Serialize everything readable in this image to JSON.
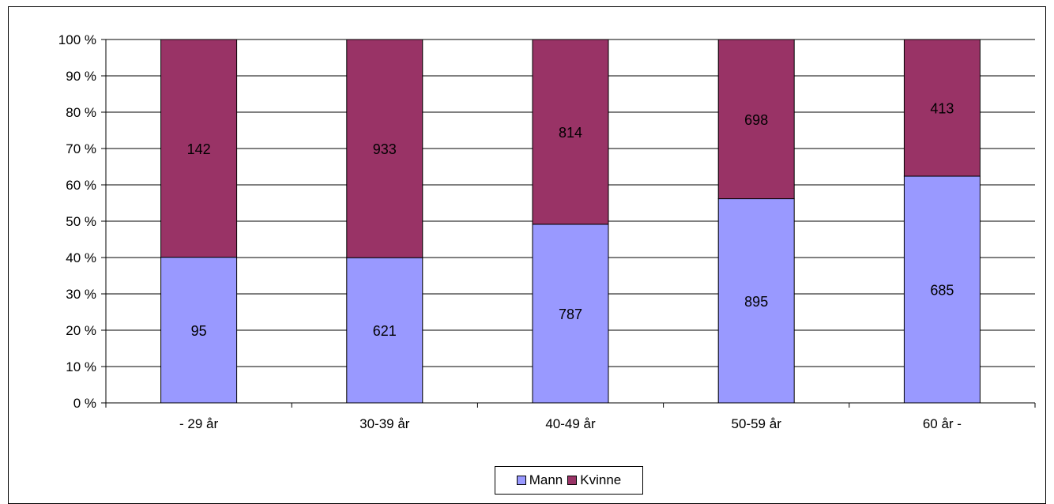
{
  "chart_data": {
    "type": "bar",
    "stacked": "percent",
    "categories": [
      "- 29 år",
      "30-39 år",
      "40-49 år",
      "50-59 år",
      "60 år -"
    ],
    "series": [
      {
        "name": "Mann",
        "color": "#9999ff",
        "values": [
          95,
          621,
          787,
          895,
          685
        ]
      },
      {
        "name": "Kvinne",
        "color": "#993366",
        "values": [
          142,
          933,
          814,
          698,
          413
        ]
      }
    ],
    "y_ticks": [
      "0 %",
      "10 %",
      "20 %",
      "30 %",
      "40 %",
      "50 %",
      "60 %",
      "70 %",
      "80 %",
      "90 %",
      "100 %"
    ],
    "ylim": [
      0,
      100
    ],
    "grid": true,
    "legend_position": "bottom"
  }
}
